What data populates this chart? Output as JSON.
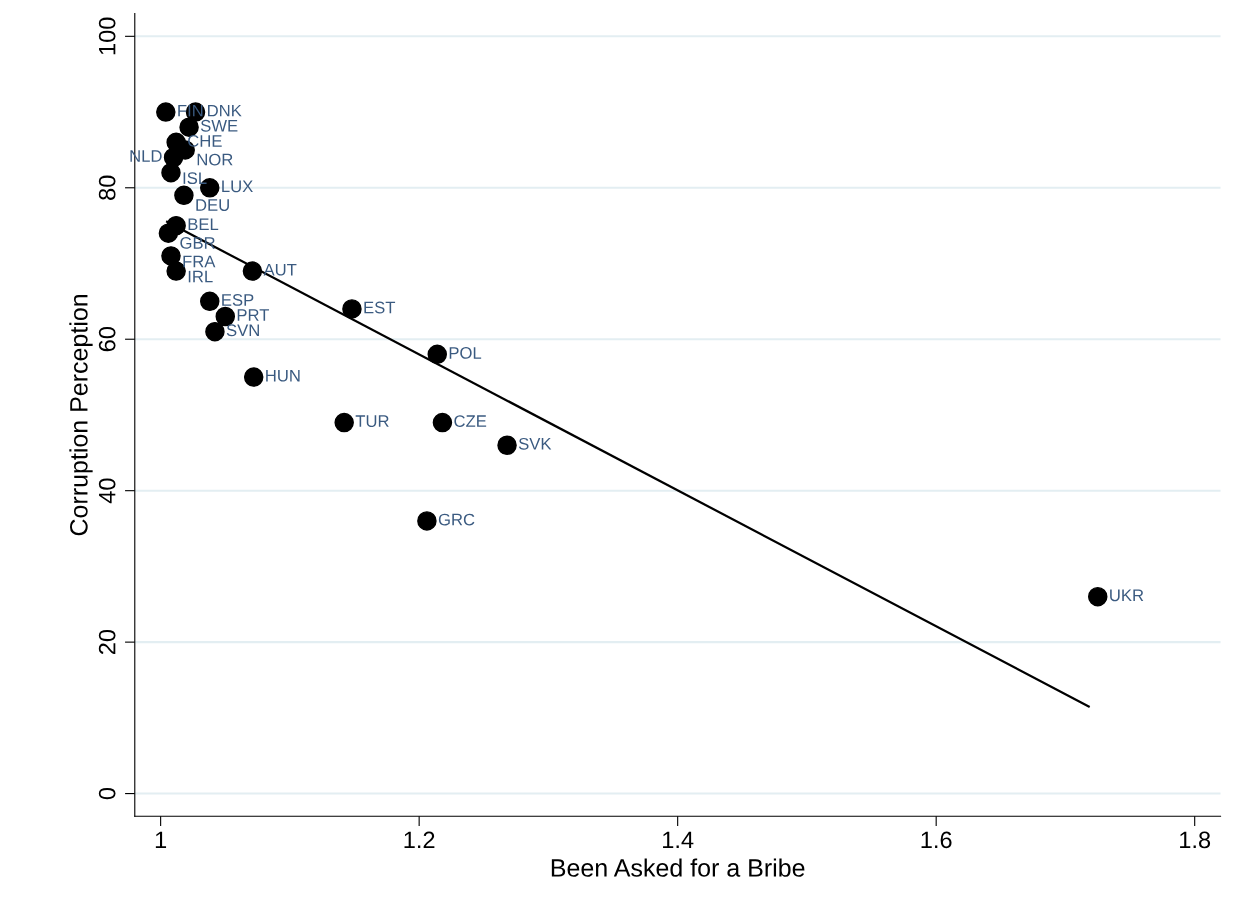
{
  "chart_data": {
    "type": "scatter",
    "xlabel": "Been Asked for a Bribe",
    "ylabel": "Corruption Perception",
    "xlim": [
      0.98,
      1.82
    ],
    "xticks": [
      1,
      1.2,
      1.4,
      1.6,
      1.8
    ],
    "ylim": [
      -3,
      103
    ],
    "yticks": [
      0,
      20,
      40,
      60,
      80,
      100
    ],
    "grid": "y",
    "legend": false,
    "marker": "circle",
    "series": [
      {
        "color": "#000000",
        "x": [
          1.004,
          1.027,
          1.022,
          1.012,
          1.019,
          1.01,
          1.008,
          1.038,
          1.018,
          1.012,
          1.006,
          1.008,
          1.012,
          1.071,
          1.038,
          1.05,
          1.042,
          1.072,
          1.148,
          1.214,
          1.142,
          1.218,
          1.268,
          1.206,
          1.725
        ],
        "values": [
          90,
          90,
          88,
          86,
          85,
          84,
          82,
          80,
          79,
          75,
          74,
          71,
          69,
          69,
          65,
          63,
          61,
          55,
          64,
          58,
          49,
          49,
          46,
          36,
          26
        ],
        "value_labels": [
          "FIN",
          "DNK",
          "SWE",
          "CHE",
          "NOR",
          "NLD",
          "ISL",
          "LUX",
          "DEU",
          "BEL",
          "GBR",
          "FRA",
          "IRL",
          "AUT",
          "ESP",
          "PRT",
          "SVN",
          "HUN",
          "EST",
          "POL",
          "TUR",
          "CZE",
          "SVK",
          "GRC",
          "UKR"
        ]
      },
      {
        "type": "line",
        "color": "#000000",
        "x": [
          1.005,
          1.718
        ],
        "values": [
          75.5,
          11.5
        ],
        "line_style": "solid",
        "marker": "none"
      }
    ]
  }
}
